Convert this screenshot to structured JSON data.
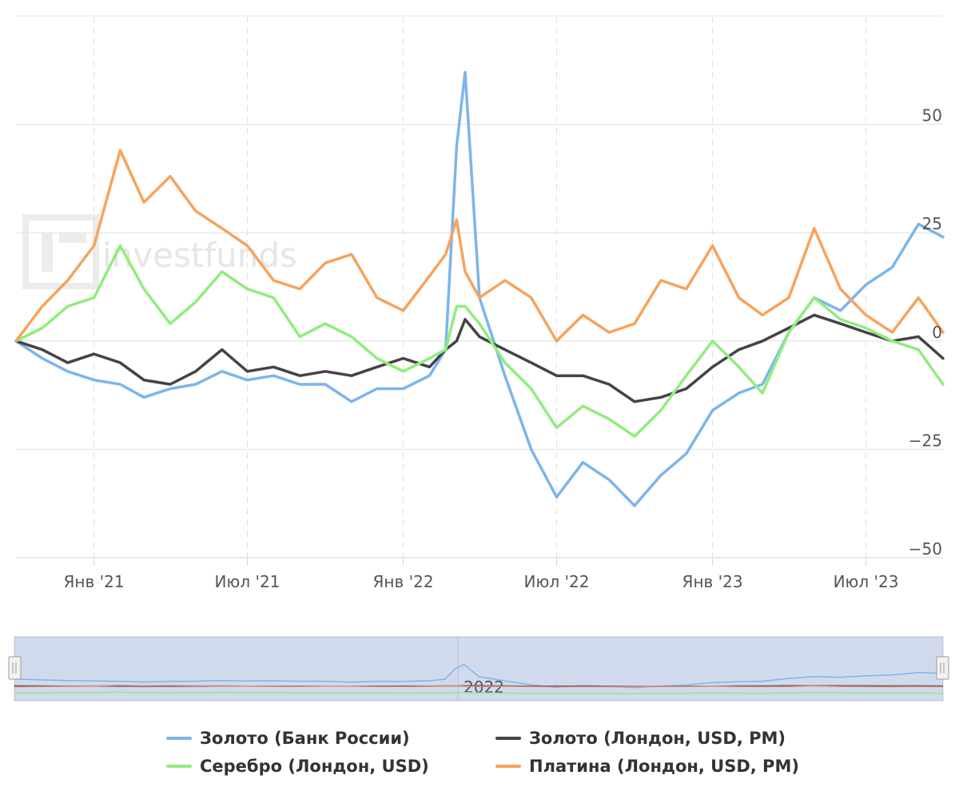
{
  "chart_data": {
    "type": "line",
    "watermark": "investfunds",
    "y_ticks": [
      50,
      25,
      0,
      -25,
      -50
    ],
    "y_tick_labels": [
      "50",
      "25",
      "0",
      "−25",
      "−50"
    ],
    "ylim": [
      -50,
      75
    ],
    "x_ticks": [
      "2021-01-01",
      "2021-07-01",
      "2022-01-01",
      "2022-07-01",
      "2023-01-01",
      "2023-07-01"
    ],
    "x_tick_labels": [
      "Янв '21",
      "Июл '21",
      "Янв '22",
      "Июл '22",
      "Янв '23",
      "Июл '23"
    ],
    "xlim": [
      "2020-10-01",
      "2023-09-30"
    ],
    "navigator_label": "2022",
    "grid": true,
    "legend_position": "bottom",
    "x": [
      "2020-10-01",
      "2020-11-01",
      "2020-12-01",
      "2021-01-01",
      "2021-02-01",
      "2021-03-01",
      "2021-04-01",
      "2021-05-01",
      "2021-06-01",
      "2021-07-01",
      "2021-08-01",
      "2021-09-01",
      "2021-10-01",
      "2021-11-01",
      "2021-12-01",
      "2022-01-01",
      "2022-02-01",
      "2022-02-20",
      "2022-03-05",
      "2022-03-15",
      "2022-04-01",
      "2022-05-01",
      "2022-06-01",
      "2022-07-01",
      "2022-08-01",
      "2022-09-01",
      "2022-10-01",
      "2022-11-01",
      "2022-12-01",
      "2023-01-01",
      "2023-02-01",
      "2023-03-01",
      "2023-04-01",
      "2023-05-01",
      "2023-06-01",
      "2023-07-01",
      "2023-08-01",
      "2023-09-01",
      "2023-09-30"
    ],
    "series": [
      {
        "name": "Золото (Банк России)",
        "color": "#7cb5ec",
        "values": [
          0,
          -4,
          -7,
          -9,
          -10,
          -13,
          -11,
          -10,
          -7,
          -9,
          -8,
          -10,
          -10,
          -14,
          -11,
          -11,
          -8,
          -2,
          45,
          62,
          10,
          -8,
          -25,
          -36,
          -28,
          -32,
          -38,
          -31,
          -26,
          -16,
          -12,
          -10,
          2,
          10,
          7,
          13,
          17,
          27,
          24
        ]
      },
      {
        "name": "Золото (Лондон, USD, PM)",
        "color": "#434348",
        "values": [
          0,
          -2,
          -5,
          -3,
          -5,
          -9,
          -10,
          -7,
          -2,
          -7,
          -6,
          -8,
          -7,
          -8,
          -6,
          -4,
          -6,
          -2,
          0,
          5,
          1,
          -2,
          -5,
          -8,
          -8,
          -10,
          -14,
          -13,
          -11,
          -6,
          -2,
          0,
          3,
          6,
          4,
          2,
          0,
          1,
          -4
        ]
      },
      {
        "name": "Серебро (Лондон, USD)",
        "color": "#90ed7d",
        "values": [
          0,
          3,
          8,
          10,
          22,
          12,
          4,
          9,
          16,
          12,
          10,
          1,
          4,
          1,
          -4,
          -7,
          -4,
          -2,
          8,
          8,
          4,
          -5,
          -11,
          -20,
          -15,
          -18,
          -22,
          -16,
          -8,
          0,
          -6,
          -12,
          2,
          10,
          5,
          3,
          0,
          -2,
          -10
        ]
      },
      {
        "name": "Платина (Лондон, USD, PM)",
        "color": "#f7a35c",
        "values": [
          0,
          8,
          14,
          22,
          44,
          32,
          38,
          30,
          26,
          22,
          14,
          12,
          18,
          20,
          10,
          7,
          15,
          20,
          28,
          16,
          10,
          14,
          10,
          0,
          6,
          2,
          4,
          14,
          12,
          22,
          10,
          6,
          10,
          26,
          12,
          6,
          2,
          10,
          2
        ]
      }
    ]
  },
  "legend": {
    "items": [
      {
        "label": "Золото (Банк России)",
        "color": "#7cb5ec"
      },
      {
        "label": "Золото (Лондон, USD, PM)",
        "color": "#434348"
      },
      {
        "label": "Серебро (Лондон, USD)",
        "color": "#90ed7d"
      },
      {
        "label": "Платина (Лондон, USD, PM)",
        "color": "#f7a35c"
      }
    ]
  }
}
